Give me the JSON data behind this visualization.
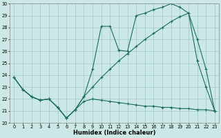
{
  "xlabel": "Humidex (Indice chaleur)",
  "xlim": [
    -0.5,
    23.5
  ],
  "ylim": [
    20,
    30
  ],
  "xticks": [
    0,
    1,
    2,
    3,
    4,
    5,
    6,
    7,
    8,
    9,
    10,
    11,
    12,
    13,
    14,
    15,
    16,
    17,
    18,
    19,
    20,
    21,
    22,
    23
  ],
  "yticks": [
    20,
    21,
    22,
    23,
    24,
    25,
    26,
    27,
    28,
    29,
    30
  ],
  "bg_color": "#cce8e6",
  "line_color": "#1a6b5e",
  "grid_color": "#a0c8c4",
  "line1_x": [
    0,
    1,
    2,
    3,
    4,
    5,
    6,
    7,
    8,
    9,
    10,
    11,
    12,
    13,
    14,
    15,
    16,
    17,
    18,
    19,
    20,
    21,
    22,
    23
  ],
  "line1_y": [
    23.8,
    22.8,
    22.2,
    21.9,
    22.0,
    21.3,
    20.4,
    21.1,
    22.2,
    24.5,
    28.1,
    28.1,
    26.1,
    26.0,
    29.0,
    29.2,
    29.5,
    29.7,
    30.0,
    29.7,
    29.2,
    25.2,
    23.0,
    21.0
  ],
  "line2_x": [
    0,
    1,
    2,
    3,
    4,
    5,
    6,
    7,
    8,
    9,
    10,
    11,
    12,
    13,
    14,
    15,
    16,
    17,
    18,
    19,
    20,
    21,
    22,
    23
  ],
  "line2_y": [
    23.8,
    22.8,
    22.2,
    21.9,
    22.0,
    21.3,
    20.4,
    21.1,
    22.2,
    23.0,
    23.8,
    24.5,
    25.2,
    25.8,
    26.4,
    27.0,
    27.5,
    28.0,
    28.5,
    28.9,
    29.2,
    27.0,
    24.5,
    21.0
  ],
  "line3_x": [
    0,
    1,
    2,
    3,
    4,
    5,
    6,
    7,
    8,
    9,
    10,
    11,
    12,
    13,
    14,
    15,
    16,
    17,
    18,
    19,
    20,
    21,
    22,
    23
  ],
  "line3_y": [
    23.8,
    22.8,
    22.2,
    21.9,
    22.0,
    21.3,
    20.4,
    21.1,
    21.8,
    22.0,
    21.9,
    21.8,
    21.7,
    21.6,
    21.5,
    21.4,
    21.4,
    21.3,
    21.3,
    21.2,
    21.2,
    21.1,
    21.1,
    21.0
  ]
}
